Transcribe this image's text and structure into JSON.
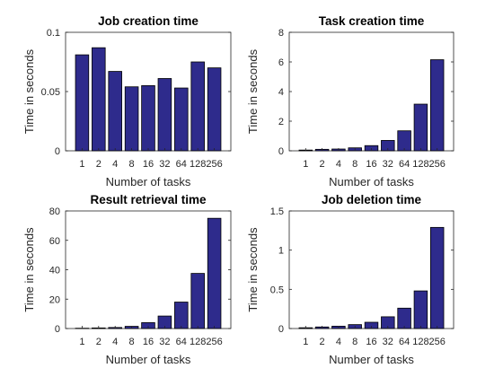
{
  "chart_data": [
    {
      "type": "bar",
      "title": "Job creation time",
      "xlabel": "Number of tasks",
      "ylabel": "Time in seconds",
      "categories": [
        "1",
        "2",
        "4",
        "8",
        "16",
        "32",
        "64",
        "128",
        "256"
      ],
      "values": [
        0.081,
        0.087,
        0.067,
        0.054,
        0.055,
        0.061,
        0.053,
        0.075,
        0.07
      ],
      "ylim": [
        0,
        0.1
      ],
      "yticks": [
        "0",
        "0.05",
        "0.1"
      ],
      "ytick_values": [
        0,
        0.05,
        0.1
      ],
      "bar_color": "#2e2b8c",
      "grid": false
    },
    {
      "type": "bar",
      "title": "Task creation time",
      "xlabel": "Number of tasks",
      "ylabel": "Time in seconds",
      "categories": [
        "1",
        "2",
        "4",
        "8",
        "16",
        "32",
        "64",
        "128",
        "256"
      ],
      "values": [
        0.05,
        0.1,
        0.12,
        0.2,
        0.35,
        0.7,
        1.35,
        3.15,
        6.15
      ],
      "ylim": [
        0,
        8
      ],
      "yticks": [
        "0",
        "2",
        "4",
        "6",
        "8"
      ],
      "ytick_values": [
        0,
        2,
        4,
        6,
        8
      ],
      "bar_color": "#2e2b8c",
      "grid": false
    },
    {
      "type": "bar",
      "title": "Result retrieval time",
      "xlabel": "Number of tasks",
      "ylabel": "Time in seconds",
      "categories": [
        "1",
        "2",
        "4",
        "8",
        "16",
        "32",
        "64",
        "128",
        "256"
      ],
      "values": [
        0.2,
        0.4,
        0.7,
        1.5,
        4.0,
        8.5,
        18.0,
        37.5,
        75.0
      ],
      "ylim": [
        0,
        80
      ],
      "yticks": [
        "0",
        "20",
        "40",
        "60",
        "80"
      ],
      "ytick_values": [
        0,
        20,
        40,
        60,
        80
      ],
      "bar_color": "#2e2b8c",
      "grid": false
    },
    {
      "type": "bar",
      "title": "Job deletion time",
      "xlabel": "Number of tasks",
      "ylabel": "Time in seconds",
      "categories": [
        "1",
        "2",
        "4",
        "8",
        "16",
        "32",
        "64",
        "128",
        "256"
      ],
      "values": [
        0.01,
        0.02,
        0.03,
        0.05,
        0.08,
        0.15,
        0.26,
        0.48,
        1.29
      ],
      "ylim": [
        0,
        1.5
      ],
      "yticks": [
        "0",
        "0.5",
        "1",
        "1.5"
      ],
      "ytick_values": [
        0,
        0.5,
        1,
        1.5
      ],
      "bar_color": "#2e2b8c",
      "grid": false
    }
  ]
}
